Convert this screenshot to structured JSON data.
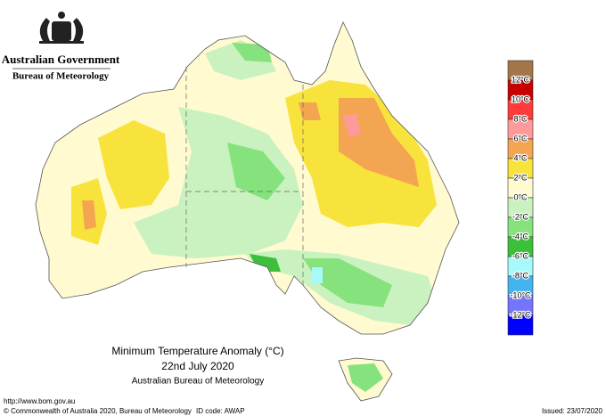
{
  "header": {
    "government": "Australian Government",
    "bureau": "Bureau of Meteorology"
  },
  "legend": {
    "colors": [
      "#a5754a",
      "#c80000",
      "#ff3a3a",
      "#ff9a9a",
      "#f3a552",
      "#f8e23c",
      "#fffad0",
      "#c9f2c0",
      "#86e27c",
      "#3cc03c",
      "#a8fafa",
      "#44b4f0",
      "#7474ff",
      "#0000ff"
    ],
    "labels": [
      "12°C",
      "10°C",
      "8°C",
      "6°C",
      "4°C",
      "2°C",
      "0°C",
      "-2°C",
      "-4°C",
      "-6°C",
      "-8°C",
      "-10°C",
      "-12°C"
    ]
  },
  "title": {
    "line1": "Minimum Temperature Anomaly (°C)",
    "line2": "22nd July 2020",
    "line3": "Australian Bureau of Meteorology"
  },
  "footer": {
    "url": "http://www.bom.gov.au",
    "copyright": "© Commonwealth of Australia 2020, Bureau of Meteorology",
    "id_code": "ID code: AWAP",
    "issued": "Issued: 23/07/2020"
  }
}
